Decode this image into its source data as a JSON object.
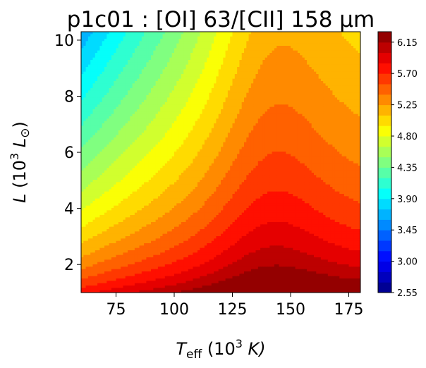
{
  "chart_data": {
    "type": "contour",
    "title": "p1c01 : [OI] 63/[CII] 158 μm",
    "xlabel": {
      "main": "T",
      "sub": "eff",
      "rest": " (10",
      "sup": "3",
      "tail": " K)"
    },
    "ylabel": {
      "main": "L",
      "rest": " (10",
      "sup": "3",
      "tail": " L",
      "sub": "⊙",
      "close": ")"
    },
    "x_range": [
      60,
      180
    ],
    "y_range": [
      1,
      10.3
    ],
    "x_ticks": [
      75,
      100,
      125,
      150,
      175
    ],
    "x_tick_labels": [
      "75",
      "100",
      "125",
      "150",
      "175"
    ],
    "y_ticks": [
      2,
      4,
      6,
      8,
      10
    ],
    "y_tick_labels": [
      "2",
      "4",
      "6",
      "8",
      "10"
    ],
    "colormap": "jet",
    "color_range": [
      2.55,
      6.3
    ],
    "level_step": 0.15,
    "colorbar_ticks": [
      2.55,
      3.0,
      3.45,
      3.9,
      4.35,
      4.8,
      5.25,
      5.7,
      6.15
    ],
    "colorbar_tick_labels": [
      "2.55",
      "3.00",
      "3.45",
      "3.90",
      "4.35",
      "4.80",
      "5.25",
      "5.70",
      "6.15"
    ],
    "grid": false
  }
}
